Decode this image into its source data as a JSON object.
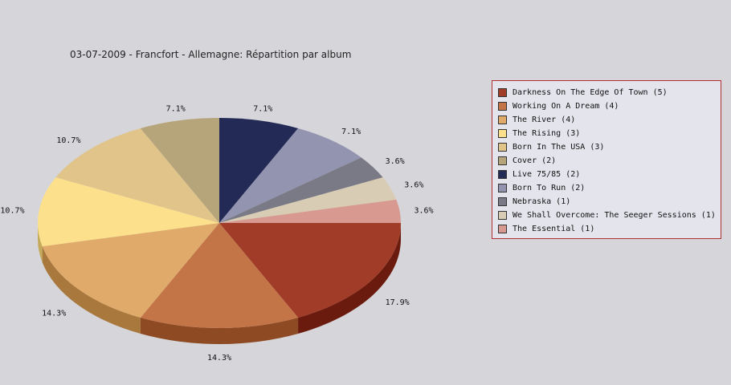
{
  "chart_data": {
    "type": "pie",
    "title": "03-07-2009 - Francfort - Allemagne:  Répartition par album",
    "legend_position": "right",
    "slices": [
      {
        "name": "Darkness On The Edge Of Town (5)",
        "value": 5,
        "label": "17.9%",
        "color": "#a03c28",
        "side": "#6b1a0e"
      },
      {
        "name": "Working On A Dream (4)",
        "value": 4,
        "label": "14.3%",
        "color": "#c47548",
        "side": "#8e4a22"
      },
      {
        "name": "The River (4)",
        "value": 4,
        "label": "14.3%",
        "color": "#e0aa6a",
        "side": "#a8783c"
      },
      {
        "name": "The Rising (3)",
        "value": 3,
        "label": "10.7%",
        "color": "#fde08c",
        "side": "#c4a95a"
      },
      {
        "name": "Born In The USA (3)",
        "value": 3,
        "label": "10.7%",
        "color": "#e0c48a",
        "side": "#a89058"
      },
      {
        "name": "Cover (2)",
        "value": 2,
        "label": "7.1%",
        "color": "#b6a47a",
        "side": "#84744e"
      },
      {
        "name": "Live 75/85 (2)",
        "value": 2,
        "label": "7.1%",
        "color": "#222a55",
        "side": "#141a38"
      },
      {
        "name": "Born To Run (2)",
        "value": 2,
        "label": "7.1%",
        "color": "#9294b0",
        "side": "#62647e"
      },
      {
        "name": "Nebraska (1)",
        "value": 1,
        "label": "3.6%",
        "color": "#7a7a86",
        "side": "#55555e"
      },
      {
        "name": "We Shall Overcome: The Seeger Sessions (1)",
        "value": 1,
        "label": "3.6%",
        "color": "#d8ccb4",
        "side": "#a89c86"
      },
      {
        "name": "The Essential (1)",
        "value": 1,
        "label": "3.6%",
        "color": "#d89a90",
        "side": "#a86a62"
      }
    ]
  }
}
